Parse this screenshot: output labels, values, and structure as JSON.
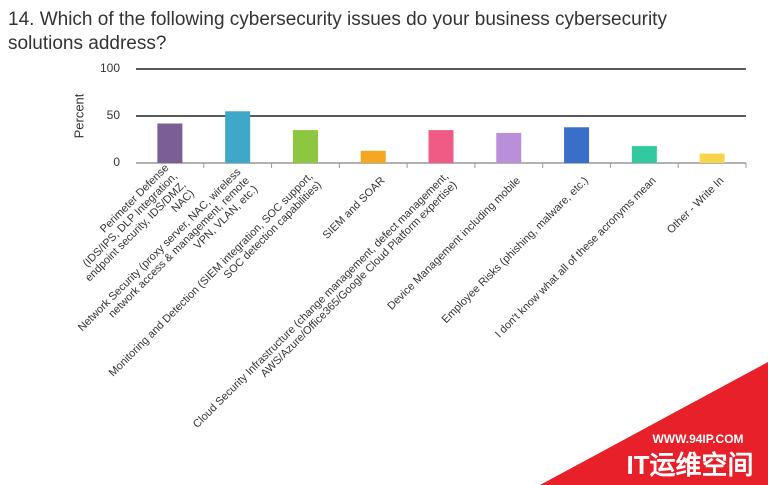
{
  "chart_data": {
    "type": "bar",
    "title": [
      "14. Which of the following cybersecurity issues do your business cybersecurity",
      "solutions address?"
    ],
    "y_label": "Percent",
    "categories": [
      [
        "Perimeter Defense",
        "(IDS/IPS, DLP Integration,",
        "endpoint security, IDS/DMZ,",
        "NAC)"
      ],
      [
        "Network Security (proxy server, NAC, wireless",
        "network access & management, remote",
        "VPN, VLAN, etc.)"
      ],
      [
        "Monitoring and Detection (SIEM integration, SOC support,",
        "SOC detection capabilities)"
      ],
      [
        "SIEM and SOAR"
      ],
      [
        "Cloud Security Infrastructure (change management, defect management,",
        "AWS/Azure/Office365/Google Cloud Platform expertise)"
      ],
      [
        "Device Management including mobile"
      ],
      [
        "Employee Risks (phishing, malware, etc.)"
      ],
      [
        "I don't know what all of these acronyms mean"
      ],
      [
        "Other - Write In"
      ]
    ],
    "values": [
      42,
      55,
      35,
      13,
      35,
      32,
      38,
      18,
      10
    ],
    "colors": [
      "#7b5e93",
      "#3fa7c8",
      "#8dc63f",
      "#f5a623",
      "#ef5b84",
      "#b98fd9",
      "#3a6fc9",
      "#33c9a0",
      "#f7d44c"
    ],
    "ylim": [
      0,
      100
    ],
    "yticks": [
      0,
      50,
      100
    ],
    "grid": true
  },
  "watermark": {
    "url": "WWW.94IP.COM",
    "text": "IT运维空间"
  }
}
